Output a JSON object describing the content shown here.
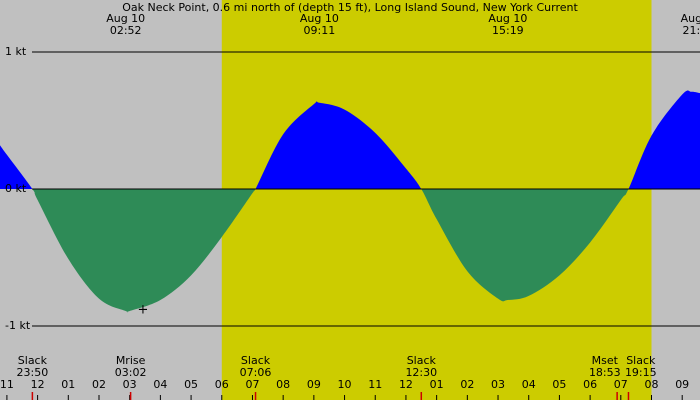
{
  "chart_data": {
    "type": "area",
    "title": "Oak Neck Point, 0.6 mi north of (depth 15 ft), Long Island Sound, New York Current",
    "x": [
      -1.225,
      -1,
      -0.17,
      0,
      1,
      2,
      2.87,
      3,
      4,
      5,
      6,
      7,
      7.1,
      8,
      9,
      9.18,
      10,
      11,
      12,
      12.5,
      13,
      14,
      15,
      15.32,
      16,
      17,
      18,
      19,
      19.25,
      20,
      21,
      21.3,
      21.58
    ],
    "values": [
      0.32,
      0.25,
      0,
      -0.08,
      -0.51,
      -0.8,
      -0.89,
      -0.89,
      -0.81,
      -0.63,
      -0.35,
      -0.03,
      0,
      0.4,
      0.62,
      0.63,
      0.58,
      0.41,
      0.15,
      0,
      -0.22,
      -0.6,
      -0.8,
      -0.81,
      -0.78,
      -0.63,
      -0.39,
      -0.08,
      0,
      0.39,
      0.69,
      0.71,
      0.7
    ],
    "flood_color": "#0000ff",
    "ebb_color": "#2e8b57",
    "background": "#c0c0c0",
    "daylight": [
      6.0,
      20.0
    ],
    "daylight_color": "#cccc00",
    "xlim": [
      -1.225,
      21.58
    ],
    "ylim": [
      -1.54,
      1.38
    ],
    "xticks": [
      {
        "value": -1,
        "label": "11"
      },
      {
        "value": 0,
        "label": "12"
      },
      {
        "value": 1,
        "label": "01"
      },
      {
        "value": 2,
        "label": "02"
      },
      {
        "value": 3,
        "label": "03"
      },
      {
        "value": 4,
        "label": "04"
      },
      {
        "value": 5,
        "label": "05"
      },
      {
        "value": 6,
        "label": "06"
      },
      {
        "value": 7,
        "label": "07"
      },
      {
        "value": 8,
        "label": "08"
      },
      {
        "value": 9,
        "label": "09"
      },
      {
        "value": 10,
        "label": "10"
      },
      {
        "value": 11,
        "label": "11"
      },
      {
        "value": 12,
        "label": "12"
      },
      {
        "value": 13,
        "label": "01"
      },
      {
        "value": 14,
        "label": "02"
      },
      {
        "value": 15,
        "label": "03"
      },
      {
        "value": 16,
        "label": "04"
      },
      {
        "value": 17,
        "label": "05"
      },
      {
        "value": 18,
        "label": "06"
      },
      {
        "value": 19,
        "label": "07"
      },
      {
        "value": 20,
        "label": "08"
      },
      {
        "value": 21,
        "label": "09"
      }
    ],
    "yticks": [
      {
        "value": 1,
        "label": "1 kt"
      },
      {
        "value": 0,
        "label": "0 kt"
      },
      {
        "value": -1,
        "label": "-1 kt"
      }
    ],
    "extrema_labels": [
      {
        "date": "Aug 10",
        "time": "02:52",
        "x": 2.87
      },
      {
        "date": "Aug 10",
        "time": "09:11",
        "x": 9.18
      },
      {
        "date": "Aug 10",
        "time": "15:19",
        "x": 15.32
      },
      {
        "date": "Aug",
        "time": "21:",
        "x": 21.3
      }
    ],
    "events": [
      {
        "name": "Slack",
        "time": "23:50",
        "x": -0.17
      },
      {
        "name": "Mrise",
        "time": "03:02",
        "x": 3.03
      },
      {
        "name": "Slack",
        "time": "07:06",
        "x": 7.1
      },
      {
        "name": "Slack",
        "time": "12:30",
        "x": 12.5
      },
      {
        "name": "Mset",
        "time": "18:53",
        "x": 18.88
      },
      {
        "name": "Slack",
        "time": "19:15",
        "x": 19.25
      }
    ]
  }
}
